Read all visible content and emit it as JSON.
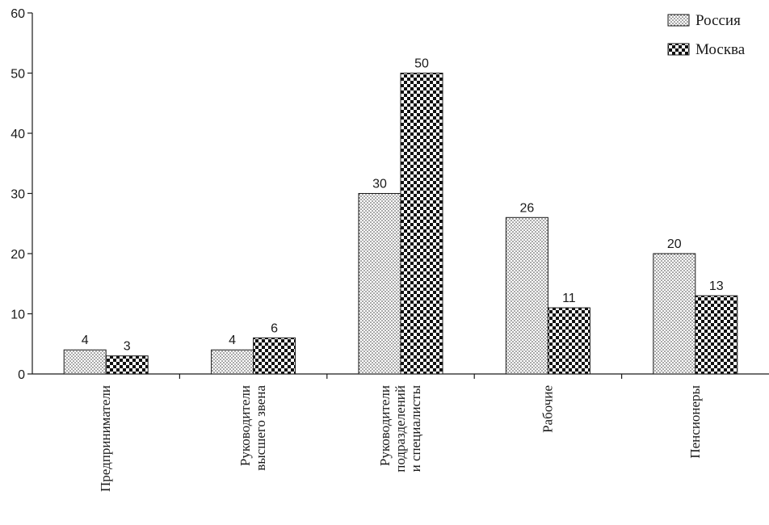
{
  "chart_data": {
    "type": "bar",
    "title": "",
    "xlabel": "",
    "ylabel": "",
    "ylim": [
      0,
      60
    ],
    "yticks": [
      0,
      10,
      20,
      30,
      40,
      50,
      60
    ],
    "grid": false,
    "legend_position": "top-right",
    "categories": [
      [
        "Предприниматели"
      ],
      [
        "Руководители",
        "высшего звена"
      ],
      [
        "Руководители",
        "подразделений",
        "и специалисты"
      ],
      [
        "Рабочие"
      ],
      [
        "Пенсионеры"
      ]
    ],
    "series": [
      {
        "name": "Россия",
        "pattern": "dotted",
        "values": [
          4,
          4,
          30,
          26,
          20
        ]
      },
      {
        "name": "Москва",
        "pattern": "checkered",
        "values": [
          3,
          6,
          50,
          11,
          13
        ]
      }
    ]
  },
  "colors": {
    "ink": "#1a1a1a",
    "background": "#ffffff"
  }
}
